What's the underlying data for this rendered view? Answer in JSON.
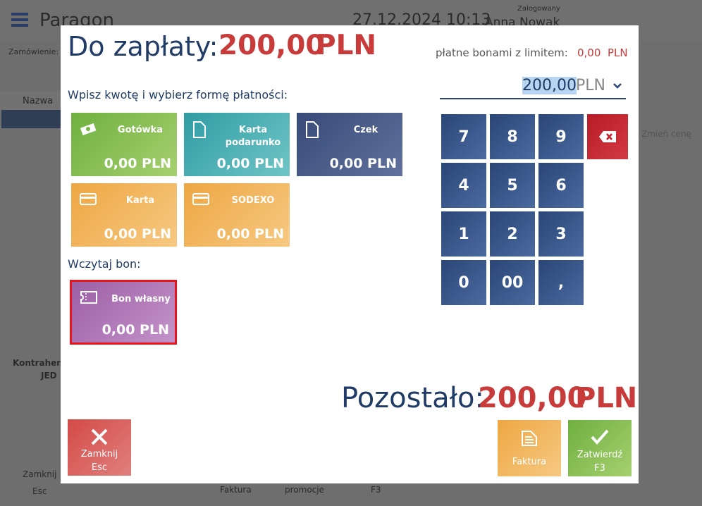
{
  "background": {
    "title": "Paragon",
    "datetime": "27.12.2024 10:13",
    "logged_label": "Zalogowany",
    "user": "Anna Nowak",
    "order_label": "Zamówienie:",
    "column": "Nazwa",
    "change_price": "Zmień cenę",
    "customer": "Kontrahen",
    "customer_value": "JED",
    "close": "Zamknij",
    "close_key": "Esc",
    "invoice": "Faktura",
    "promotions": "promocje",
    "confirm_key": "F3"
  },
  "dialog": {
    "amount_label": "Do zapłaty:",
    "amount": "200,00",
    "currency": "PLN",
    "limit_label": "płatne bonami z limitem:",
    "limit_amount": "0,00",
    "limit_currency": "PLN",
    "input_value": "200,00",
    "input_currency": "PLN",
    "methods_label": "Wpisz kwotę i wybierz formę płatności:",
    "methods": [
      {
        "name": "Gotówka",
        "amount": "0,00 PLN"
      },
      {
        "name": "Karta podarunko",
        "amount": "0,00 PLN"
      },
      {
        "name": "Czek",
        "amount": "0,00 PLN"
      },
      {
        "name": "Karta",
        "amount": "0,00 PLN"
      },
      {
        "name": "SODEXO",
        "amount": "0,00 PLN"
      }
    ],
    "voucher_label": "Wczytaj bon:",
    "vouchers": [
      {
        "name": "Bon własny",
        "amount": "0,00 PLN"
      }
    ],
    "keypad": [
      "7",
      "8",
      "9",
      "4",
      "5",
      "6",
      "1",
      "2",
      "3",
      "0",
      "00",
      ","
    ],
    "remaining_label": "Pozostało:",
    "remaining_amount": "200,00",
    "remaining_currency": "PLN",
    "buttons": [
      {
        "label": "Zamknij",
        "key": "Esc"
      },
      {
        "label": "Faktura"
      },
      {
        "label": "Zatwierdź",
        "key": "F3"
      }
    ]
  }
}
